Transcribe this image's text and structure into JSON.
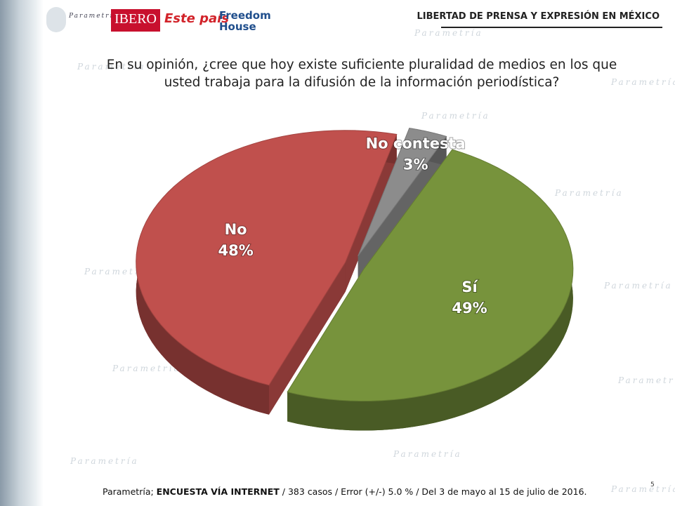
{
  "header": {
    "logos": [
      "Parametría",
      "IBERO",
      "Este país",
      "Freedom House"
    ],
    "section": "LIBERTAD DE PRENSA Y EXPRESIÓN EN MÉXICO"
  },
  "chart_data": {
    "type": "pie",
    "title": "En su opinión, ¿cree que hoy existe suficiente pluralidad de medios en los que usted trabaja para la difusión de la información periodística?",
    "categories": [
      "Sí",
      "No",
      "No contesta"
    ],
    "values": [
      49,
      48,
      3
    ],
    "value_labels": [
      "49%",
      "48%",
      "3%"
    ],
    "colors": [
      "#77933c",
      "#c0504d",
      "#8c8c8c"
    ]
  },
  "footer": {
    "source": "Parametría;",
    "method": "ENCUESTA VÍA INTERNET",
    "details": "/  383 casos / Error (+/-) 5.0 % / Del 3 de mayo al 15 de julio de 2016."
  },
  "page_number": "5",
  "watermark": "Parametría"
}
